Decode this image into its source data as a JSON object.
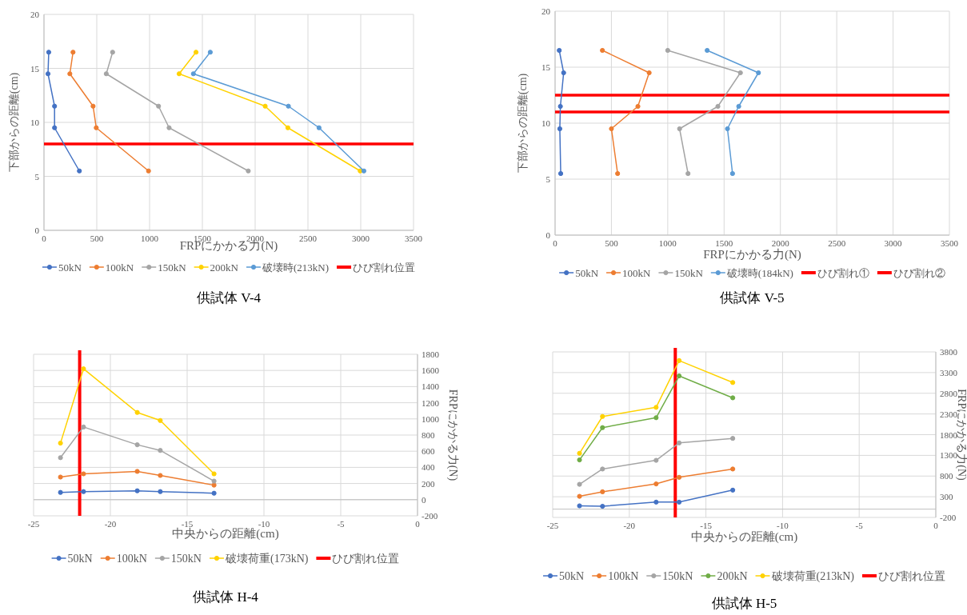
{
  "chart_data": [
    {
      "type": "line",
      "title": "供試体 V-4",
      "xlabel": "FRPにかかる力(N)",
      "ylabel": "下部からの距離(cm)",
      "xlim": [
        0,
        3500
      ],
      "xticks": [
        0,
        500,
        1000,
        1500,
        2000,
        2500,
        3000,
        3500
      ],
      "ylim": [
        0,
        20
      ],
      "yticks": [
        0,
        5,
        10,
        15,
        20
      ],
      "grid": true,
      "legend": "bottom",
      "marker": "circle",
      "line_style": "solid",
      "series": [
        {
          "name": "50kN",
          "color": "#4472c4",
          "x": [
            45,
            38,
            100,
            100,
            335
          ],
          "values": [
            16.5,
            14.5,
            11.5,
            9.5,
            5.5
          ]
        },
        {
          "name": "100kN",
          "color": "#ed7d31",
          "x": [
            275,
            245,
            465,
            495,
            990
          ],
          "values": [
            16.5,
            14.5,
            11.5,
            9.5,
            5.5
          ]
        },
        {
          "name": "150kN",
          "color": "#a5a5a5",
          "x": [
            650,
            590,
            1085,
            1185,
            1935
          ],
          "values": [
            16.5,
            14.5,
            11.5,
            9.5,
            5.5
          ]
        },
        {
          "name": "200kN",
          "color": "#ffd200",
          "x": [
            1440,
            1280,
            2095,
            2310,
            2995
          ],
          "values": [
            16.5,
            14.5,
            11.5,
            9.5,
            5.5
          ]
        },
        {
          "name": "破壊時(213kN)",
          "color": "#5b9bd5",
          "x": [
            1575,
            1415,
            2315,
            2605,
            3030
          ],
          "values": [
            16.5,
            14.5,
            11.5,
            9.5,
            5.5
          ]
        }
      ],
      "ref_lines": [
        {
          "axis": "y",
          "value": 8,
          "label": "ひび割れ位置",
          "color": "#ff0000"
        }
      ]
    },
    {
      "type": "line",
      "title": "供試体 V-5",
      "xlabel": "FRPにかかる力(N)",
      "ylabel": "下部からの距離(cm)",
      "xlim": [
        0,
        3500
      ],
      "xticks": [
        0,
        500,
        1000,
        1500,
        2000,
        2500,
        3000,
        3500
      ],
      "ylim": [
        0,
        20
      ],
      "yticks": [
        0,
        5,
        10,
        15,
        20
      ],
      "grid": true,
      "legend": "bottom",
      "marker": "circle",
      "line_style": "solid",
      "series": [
        {
          "name": "50kN",
          "color": "#4472c4",
          "x": [
            37,
            76,
            47,
            42,
            50
          ],
          "values": [
            16.5,
            14.5,
            11.5,
            9.5,
            5.5
          ]
        },
        {
          "name": "100kN",
          "color": "#ed7d31",
          "x": [
            420,
            835,
            735,
            500,
            555
          ],
          "values": [
            16.5,
            14.5,
            11.5,
            9.5,
            5.5
          ]
        },
        {
          "name": "150kN",
          "color": "#a5a5a5",
          "x": [
            1000,
            1645,
            1445,
            1105,
            1180
          ],
          "values": [
            16.5,
            14.5,
            11.5,
            9.5,
            5.5
          ]
        },
        {
          "name": "破壊時(184kN)",
          "color": "#5b9bd5",
          "x": [
            1350,
            1805,
            1630,
            1530,
            1575
          ],
          "values": [
            16.5,
            14.5,
            11.5,
            9.5,
            5.5
          ]
        }
      ],
      "ref_lines": [
        {
          "axis": "y",
          "value": 12.5,
          "label": "ひび割れ①",
          "color": "#ff0000"
        },
        {
          "axis": "y",
          "value": 11,
          "label": "ひび割れ②",
          "color": "#ff0000"
        }
      ]
    },
    {
      "type": "line",
      "title": "供試体 H-4",
      "xlabel": "中央からの距離(cm)",
      "ylabel": "FRPにかかる力(N)",
      "xlim": [
        -25,
        0
      ],
      "xticks": [
        -25,
        -20,
        -15,
        -10,
        -5,
        0
      ],
      "ylim": [
        -200,
        1800
      ],
      "yticks": [
        -200,
        0,
        200,
        400,
        600,
        800,
        1000,
        1200,
        1400,
        1600,
        1800
      ],
      "grid": true,
      "legend": "bottom",
      "marker": "circle",
      "line_style": "solid",
      "x": [
        -23.25,
        -21.75,
        -18.25,
        -16.75,
        -13.25
      ],
      "series": [
        {
          "name": "50kN",
          "color": "#4472c4",
          "values": [
            90,
            100,
            110,
            100,
            80
          ]
        },
        {
          "name": "100kN",
          "color": "#ed7d31",
          "values": [
            280,
            320,
            350,
            300,
            180
          ]
        },
        {
          "name": "150kN",
          "color": "#a5a5a5",
          "values": [
            520,
            900,
            680,
            610,
            230
          ]
        },
        {
          "name": "破壊荷重(173kN)",
          "color": "#ffd200",
          "values": [
            700,
            1620,
            1080,
            980,
            320
          ]
        }
      ],
      "ref_lines": [
        {
          "axis": "x",
          "value": -22,
          "label": "ひび割れ位置",
          "color": "#ff0000"
        }
      ]
    },
    {
      "type": "line",
      "title": "供試体 H-5",
      "xlabel": "中央からの距離(cm)",
      "ylabel": "FRPにかかる力(N)",
      "xlim": [
        -25,
        0
      ],
      "xticks": [
        -25,
        -20,
        -15,
        -10,
        -5,
        0
      ],
      "ylim": [
        -200,
        3800
      ],
      "yticks": [
        -200,
        300,
        800,
        1300,
        1800,
        2300,
        2800,
        3300,
        3800
      ],
      "grid": true,
      "legend": "bottom",
      "marker": "circle",
      "line_style": "solid",
      "x": [
        -23.25,
        -21.75,
        -18.25,
        -16.75,
        -13.25
      ],
      "series": [
        {
          "name": "50kN",
          "color": "#4472c4",
          "values": [
            80,
            70,
            170,
            170,
            460
          ]
        },
        {
          "name": "100kN",
          "color": "#ed7d31",
          "values": [
            310,
            420,
            610,
            770,
            970
          ]
        },
        {
          "name": "150kN",
          "color": "#a5a5a5",
          "values": [
            600,
            970,
            1180,
            1600,
            1710
          ]
        },
        {
          "name": "200kN",
          "color": "#70ad47",
          "values": [
            1190,
            1970,
            2210,
            3220,
            2690
          ]
        },
        {
          "name": "破壊荷重(213kN)",
          "color": "#ffd200",
          "values": [
            1350,
            2240,
            2460,
            3590,
            3060
          ]
        }
      ],
      "ref_lines": [
        {
          "axis": "x",
          "value": -17,
          "label": "ひび割れ位置",
          "color": "#ff0000"
        }
      ]
    }
  ]
}
